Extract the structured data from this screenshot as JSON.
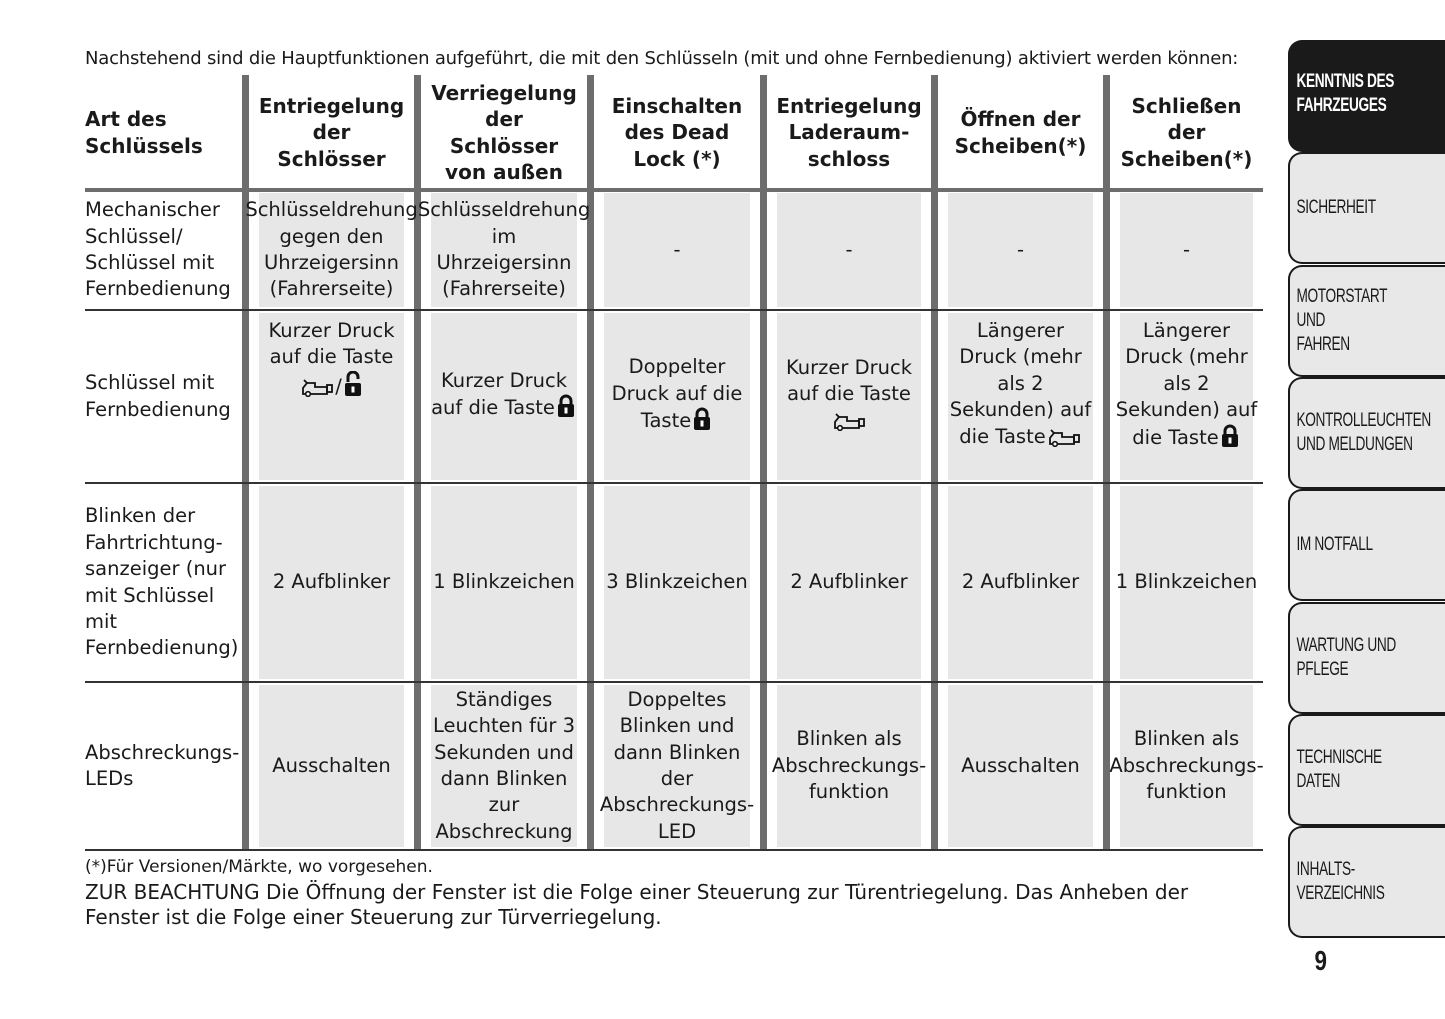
{
  "intro": "Nachstehend sind die Hauptfunktionen aufgeführt, die mit den Schlüsseln (mit und ohne Fernbedienung) aktiviert werden können:",
  "table": {
    "headers": [
      "Art des\nSchlüssels",
      "Entriegelung\nder\nSchlösser",
      "Verriegelung\nder\nSchlösser\nvon außen",
      "Einschalten\ndes Dead\nLock (*)",
      "Entriegelung\nLaderaum-\nschloss",
      "Öffnen der\nScheiben(*)",
      "Schließen\nder\nScheiben(*)"
    ],
    "rows": [
      {
        "label": "Mechanischer\nSchlüssel/\nSchlüssel mit\nFernbedienung",
        "cells": [
          {
            "text": "Schlüsseldrehung\ngegen den\nUhrzeigersinn\n(Fahrerseite)"
          },
          {
            "text": "Schlüsseldrehung\nim\nUhrzeigersinn\n(Fahrerseite)"
          },
          {
            "text": "-"
          },
          {
            "text": "-"
          },
          {
            "text": "-"
          },
          {
            "text": "-"
          }
        ]
      },
      {
        "label": "Schlüssel mit\nFernbedienung",
        "cells": [
          {
            "text": "Kurzer Druck\nauf die Taste\n",
            "icons": [
              "trunk-icon",
              "/",
              "unlock-icon"
            ],
            "top": true
          },
          {
            "text": "Kurzer Druck\nauf die Taste",
            "icons": [
              "lock-icon"
            ]
          },
          {
            "text": "Doppelter\nDruck auf die\nTaste",
            "icons": [
              "lock-icon"
            ]
          },
          {
            "text": "Kurzer Druck\nauf die Taste\n",
            "icons": [
              "trunk-icon"
            ]
          },
          {
            "text": "Längerer\nDruck (mehr\nals 2\nSekunden) auf\ndie Taste",
            "icons": [
              "trunk-icon"
            ],
            "top": true
          },
          {
            "text": "Längerer\nDruck (mehr\nals 2\nSekunden) auf\ndie Taste",
            "icons": [
              "lock-icon"
            ],
            "top": true
          }
        ]
      },
      {
        "label": "Blinken der\nFahrtrichtung-\nsanzeiger (nur\nmit Schlüssel\nmit\nFernbedienung)",
        "cells": [
          {
            "text": "2 Aufblinker"
          },
          {
            "text": "1 Blinkzeichen"
          },
          {
            "text": "3 Blinkzeichen"
          },
          {
            "text": "2 Aufblinker"
          },
          {
            "text": "2 Aufblinker"
          },
          {
            "text": "1 Blinkzeichen"
          }
        ]
      },
      {
        "label": "Abschreckungs-\nLEDs",
        "cells": [
          {
            "text": "Ausschalten"
          },
          {
            "text": "Ständiges\nLeuchten für 3\nSekunden und\ndann Blinken\nzur\nAbschreckung"
          },
          {
            "text": "Doppeltes\nBlinken und\ndann Blinken\nder\nAbschreckungs-\nLED"
          },
          {
            "text": "Blinken als\nAbschreckungs-\nfunktion"
          },
          {
            "text": "Ausschalten"
          },
          {
            "text": "Blinken als\nAbschreckungs-\nfunktion"
          }
        ]
      }
    ]
  },
  "footnote": "(*)Für Versionen/Märkte, wo vorgesehen.",
  "note": "ZUR BEACHTUNG Die Öffnung der Fenster ist die Folge einer Steuerung zur Türentriegelung. Das Anheben der Fenster ist die Folge einer Steuerung zur Türverriegelung.",
  "sidebar": {
    "active_index": 0,
    "tabs": [
      "KENNTNIS DES\nFAHRZEUGES",
      "SICHERHEIT",
      "MOTORSTART UND\nFAHREN",
      "KONTROLLEUCHTEN\nUND MELDUNGEN",
      "IM NOTFALL",
      "WARTUNG UND\nPFLEGE",
      "TECHNISCHE DATEN",
      "INHALTS-\nVERZEICHNIS"
    ]
  },
  "page_number": "9",
  "colors": {
    "cell_fill": "#e7e7e7",
    "bar": "#6d6d6d",
    "active_tab": "#1a1a1a",
    "tab": "#e8e8e8"
  }
}
